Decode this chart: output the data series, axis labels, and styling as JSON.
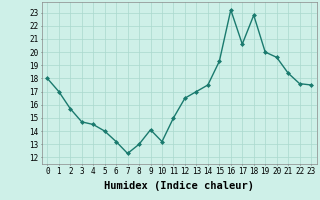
{
  "x": [
    0,
    1,
    2,
    3,
    4,
    5,
    6,
    7,
    8,
    9,
    10,
    11,
    12,
    13,
    14,
    15,
    16,
    17,
    18,
    19,
    20,
    21,
    22,
    23
  ],
  "y": [
    18.0,
    17.0,
    15.7,
    14.7,
    14.5,
    14.0,
    13.2,
    12.3,
    13.0,
    14.1,
    13.2,
    15.0,
    16.5,
    17.0,
    17.5,
    19.3,
    23.2,
    20.6,
    22.8,
    20.0,
    19.6,
    18.4,
    17.6,
    17.5
  ],
  "line_color": "#1a7a6e",
  "marker": "D",
  "marker_size": 2.0,
  "bg_color": "#cef0e8",
  "grid_color": "#aad8ce",
  "xlabel": "Humidex (Indice chaleur)",
  "xlabel_fontsize": 7.5,
  "xlim": [
    -0.5,
    23.5
  ],
  "ylim": [
    11.5,
    23.8
  ],
  "yticks": [
    12,
    13,
    14,
    15,
    16,
    17,
    18,
    19,
    20,
    21,
    22,
    23
  ],
  "xticks": [
    0,
    1,
    2,
    3,
    4,
    5,
    6,
    7,
    8,
    9,
    10,
    11,
    12,
    13,
    14,
    15,
    16,
    17,
    18,
    19,
    20,
    21,
    22,
    23
  ],
  "tick_fontsize": 5.5,
  "line_width": 1.0
}
